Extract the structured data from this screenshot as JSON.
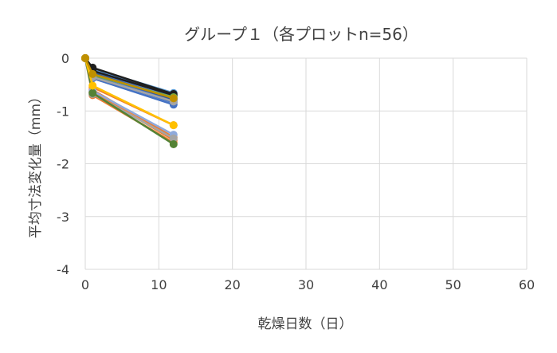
{
  "chart_data": {
    "type": "line",
    "title": "グループ１（各プロットn=56）",
    "xlabel": "乾燥日数（日）",
    "ylabel": "平均寸法変化量（mm）",
    "xlim": [
      0,
      60
    ],
    "ylim": [
      -4,
      0
    ],
    "x_ticks": [
      "0",
      "10",
      "20",
      "30",
      "40",
      "50",
      "60"
    ],
    "y_ticks": [
      "0",
      "-1",
      "-2",
      "-3",
      "-4"
    ],
    "grid": true,
    "legend": "none",
    "series": [
      {
        "color": "#4472C4",
        "x": [
          0,
          1,
          12
        ],
        "y": [
          0,
          -0.22,
          -0.72
        ]
      },
      {
        "color": "#4472C4",
        "x": [
          0,
          1,
          12
        ],
        "y": [
          0,
          -0.26,
          -0.76
        ]
      },
      {
        "color": "#4472C4",
        "x": [
          0,
          1,
          12
        ],
        "y": [
          0,
          -0.3,
          -0.8
        ]
      },
      {
        "color": "#4472C4",
        "x": [
          0,
          1,
          12
        ],
        "y": [
          0,
          -0.34,
          -0.84
        ]
      },
      {
        "color": "#4472C4",
        "x": [
          0,
          1,
          12
        ],
        "y": [
          0,
          -0.38,
          -0.88
        ]
      },
      {
        "color": "#2F5597",
        "x": [
          0,
          1,
          12
        ],
        "y": [
          0,
          -0.28,
          -0.78
        ]
      },
      {
        "color": "#5B9BD5",
        "x": [
          0,
          1,
          12
        ],
        "y": [
          0,
          -0.2,
          -0.66
        ]
      },
      {
        "color": "#1F1F1F",
        "x": [
          0,
          1,
          12
        ],
        "y": [
          0,
          -0.18,
          -0.68
        ]
      },
      {
        "color": "#1F1F1F",
        "x": [
          0,
          1,
          12
        ],
        "y": [
          0,
          -0.24,
          -0.7
        ]
      },
      {
        "color": "#70AD47",
        "x": [
          0,
          1,
          12
        ],
        "y": [
          0,
          -0.32,
          -0.74
        ]
      },
      {
        "color": "#A5A5A5",
        "x": [
          0,
          1,
          12
        ],
        "y": [
          0,
          -0.36,
          -0.82
        ]
      },
      {
        "color": "#ED7D31",
        "x": [
          0,
          1,
          12
        ],
        "y": [
          0,
          -0.6,
          -1.5
        ]
      },
      {
        "color": "#ED7D31",
        "x": [
          0,
          1,
          12
        ],
        "y": [
          0,
          -0.64,
          -1.55
        ]
      },
      {
        "color": "#ED7D31",
        "x": [
          0,
          1,
          12
        ],
        "y": [
          0,
          -0.7,
          -1.6
        ]
      },
      {
        "color": "#ED7D31",
        "x": [
          0,
          1,
          12
        ],
        "y": [
          0,
          -0.55,
          -1.27
        ]
      },
      {
        "color": "#8FAADC",
        "x": [
          0,
          1,
          12
        ],
        "y": [
          0,
          -0.62,
          -1.45
        ]
      },
      {
        "color": "#A5A5A5",
        "x": [
          0,
          1,
          12
        ],
        "y": [
          0,
          -0.68,
          -1.52
        ]
      },
      {
        "color": "#548235",
        "x": [
          0,
          1,
          12
        ],
        "y": [
          0,
          -0.66,
          -1.63
        ]
      },
      {
        "color": "#FFC000",
        "x": [
          0,
          1,
          12
        ],
        "y": [
          0,
          -0.52,
          -1.27
        ]
      },
      {
        "color": "#BF9000",
        "x": [
          0,
          1,
          12
        ],
        "y": [
          0,
          -0.3,
          -0.76
        ]
      }
    ]
  }
}
